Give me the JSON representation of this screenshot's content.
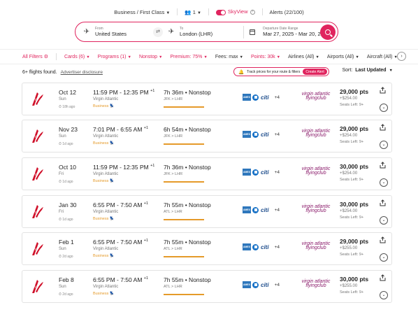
{
  "topbar": {
    "cabin": "Business / First Class",
    "passengers": "1",
    "skyview": "SkyView",
    "alerts": "Alerts (22/100)"
  },
  "search": {
    "from_label": "From",
    "from_value": "United States",
    "to_label": "To",
    "to_value": "London (LHR)",
    "dates_label": "Departure Date Range",
    "dates_value": "Mar 27, 2025 - Mar 20, 2026"
  },
  "filters": [
    {
      "label": "All Filters",
      "active": true
    },
    {
      "label": "Cards (6)",
      "active": true
    },
    {
      "label": "Programs (1)",
      "active": true
    },
    {
      "label": "Nonstop",
      "active": true
    },
    {
      "label": "Premium: 75%",
      "active": true
    },
    {
      "label": "Fees: max",
      "active": false
    },
    {
      "label": "Points: 30k",
      "active": true
    },
    {
      "label": "Airlines (All)",
      "active": false
    },
    {
      "label": "Airports (All)",
      "active": false
    },
    {
      "label": "Aircraft (All)",
      "active": false
    }
  ],
  "results": {
    "count": "6+ flights found.",
    "disclosure": "Advertiser disclosure",
    "track": "Track prices for your route & filters",
    "create_alert": "Create Alert",
    "sort_label": "Sort:",
    "sort_value": "Last Updated"
  },
  "flights": [
    {
      "date": "Oct 12",
      "dow": "Sun",
      "ago": "18h ago",
      "time": "11:59 PM - 12:35 PM",
      "plus": "+1",
      "airline": "Virgin Atlantic",
      "cabin": "Business",
      "duration": "7h 36m • Nonstop",
      "route": "JFK > LHR",
      "more": "+4",
      "points": "29,000 pts",
      "tax": "+$254.00",
      "seats": "Seats Left: 9+"
    },
    {
      "date": "Nov 23",
      "dow": "Sun",
      "ago": "1d ago",
      "time": "7:01 PM - 6:55 AM",
      "plus": "+1",
      "airline": "Virgin Atlantic",
      "cabin": "Business",
      "duration": "6h 54m • Nonstop",
      "route": "JFK > LHR",
      "more": "+4",
      "points": "29,000 pts",
      "tax": "+$254.00",
      "seats": "Seats Left: 9+"
    },
    {
      "date": "Oct 10",
      "dow": "Fri",
      "ago": "1d ago",
      "time": "11:59 PM - 12:35 PM",
      "plus": "+1",
      "airline": "Virgin Atlantic",
      "cabin": "Business",
      "duration": "7h 36m • Nonstop",
      "route": "JFK > LHR",
      "more": "+4",
      "points": "30,000 pts",
      "tax": "+$254.00",
      "seats": "Seats Left: 9+"
    },
    {
      "date": "Jan 30",
      "dow": "Fri",
      "ago": "1d ago",
      "time": "6:55 PM - 7:50 AM",
      "plus": "+1",
      "airline": "Virgin Atlantic",
      "cabin": "Business",
      "duration": "7h 55m • Nonstop",
      "route": "ATL > LHR",
      "more": "+4",
      "points": "30,000 pts",
      "tax": "+$254.00",
      "seats": "Seats Left: 9+"
    },
    {
      "date": "Feb 1",
      "dow": "Sun",
      "ago": "2d ago",
      "time": "6:55 PM - 7:50 AM",
      "plus": "+1",
      "airline": "Virgin Atlantic",
      "cabin": "Business",
      "duration": "7h 55m • Nonstop",
      "route": "ATL > LHR",
      "more": "+4",
      "points": "29,000 pts",
      "tax": "+$255.00",
      "seats": "Seats Left: 9+"
    },
    {
      "date": "Feb 8",
      "dow": "Sun",
      "ago": "2d ago",
      "time": "6:55 PM - 7:50 AM",
      "plus": "+1",
      "airline": "Virgin Atlantic",
      "cabin": "Business",
      "duration": "7h 55m • Nonstop",
      "route": "ATL > LHR",
      "more": "+4",
      "points": "30,000 pts",
      "tax": "+$255.00",
      "seats": "Seats Left: 9+"
    }
  ],
  "program_logo": {
    "line1": "virgin atlantic",
    "line2": "flyingclub"
  },
  "colors": {
    "accent": "#e0245e",
    "business": "#e59a2a",
    "virgin_red": "#d0102a",
    "flyingclub": "#8a1a6a"
  }
}
